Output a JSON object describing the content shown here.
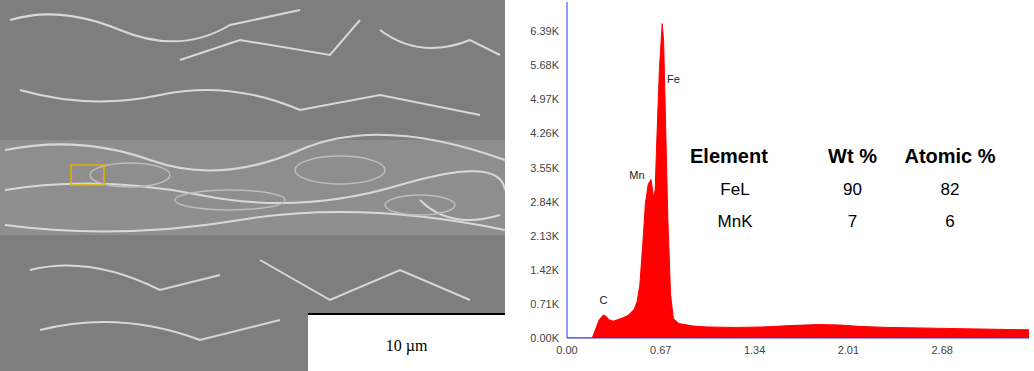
{
  "image": {
    "scale_bar": "10 µm"
  },
  "chart_data": {
    "type": "area",
    "color": "#ff0000",
    "grid": false,
    "xlim": [
      0,
      3.3
    ],
    "xticks": [
      {
        "value": 0,
        "label": "0.00"
      },
      0.67,
      1.34,
      2.01,
      2.68
    ],
    "ylim": [
      0,
      7000
    ],
    "yticks": [
      {
        "value": 0,
        "label": "0.00K"
      },
      {
        "value": 710,
        "label": "0.71K"
      },
      {
        "value": 1420,
        "label": "1.42K"
      },
      {
        "value": 2130,
        "label": "2.13K"
      },
      {
        "value": 2840,
        "label": "2.84K"
      },
      {
        "value": 3550,
        "label": "3.55K"
      },
      {
        "value": 4260,
        "label": "4.26K"
      },
      {
        "value": 4970,
        "label": "4.97K"
      },
      {
        "value": 5680,
        "label": "5.68K"
      },
      {
        "value": 6390,
        "label": "6.39K"
      }
    ],
    "x": [
      0,
      0.18,
      0.2,
      0.23,
      0.26,
      0.28,
      0.3,
      0.33,
      0.36,
      0.4,
      0.44,
      0.48,
      0.5,
      0.52,
      0.54,
      0.56,
      0.58,
      0.6,
      0.62,
      0.63,
      0.64,
      0.66,
      0.68,
      0.69,
      0.7,
      0.72,
      0.74,
      0.76,
      0.8,
      0.9,
      1.0,
      1.2,
      1.4,
      1.6,
      1.8,
      1.95,
      2.1,
      2.3,
      2.5,
      2.7,
      2.9,
      3.1,
      3.3
    ],
    "values": [
      0,
      0,
      150,
      380,
      480,
      450,
      380,
      350,
      380,
      420,
      480,
      600,
      750,
      1100,
      1900,
      2800,
      3200,
      3300,
      2900,
      3100,
      4000,
      5600,
      6550,
      6200,
      5000,
      2500,
      900,
      400,
      300,
      250,
      230,
      220,
      230,
      260,
      280,
      270,
      240,
      220,
      210,
      200,
      190,
      180,
      170
    ],
    "annotations": [
      {
        "text": "Fe",
        "x": 0.76,
        "y": 5400
      },
      {
        "text": "Mn",
        "x": 0.5,
        "y": 3400
      },
      {
        "text": "C",
        "x": 0.26,
        "y": 800
      }
    ],
    "table": {
      "columns": [
        "Element",
        "Wt %",
        "Atomic %"
      ],
      "rows": [
        [
          "FeL",
          90,
          82
        ],
        [
          "MnK",
          7,
          6
        ]
      ]
    }
  }
}
